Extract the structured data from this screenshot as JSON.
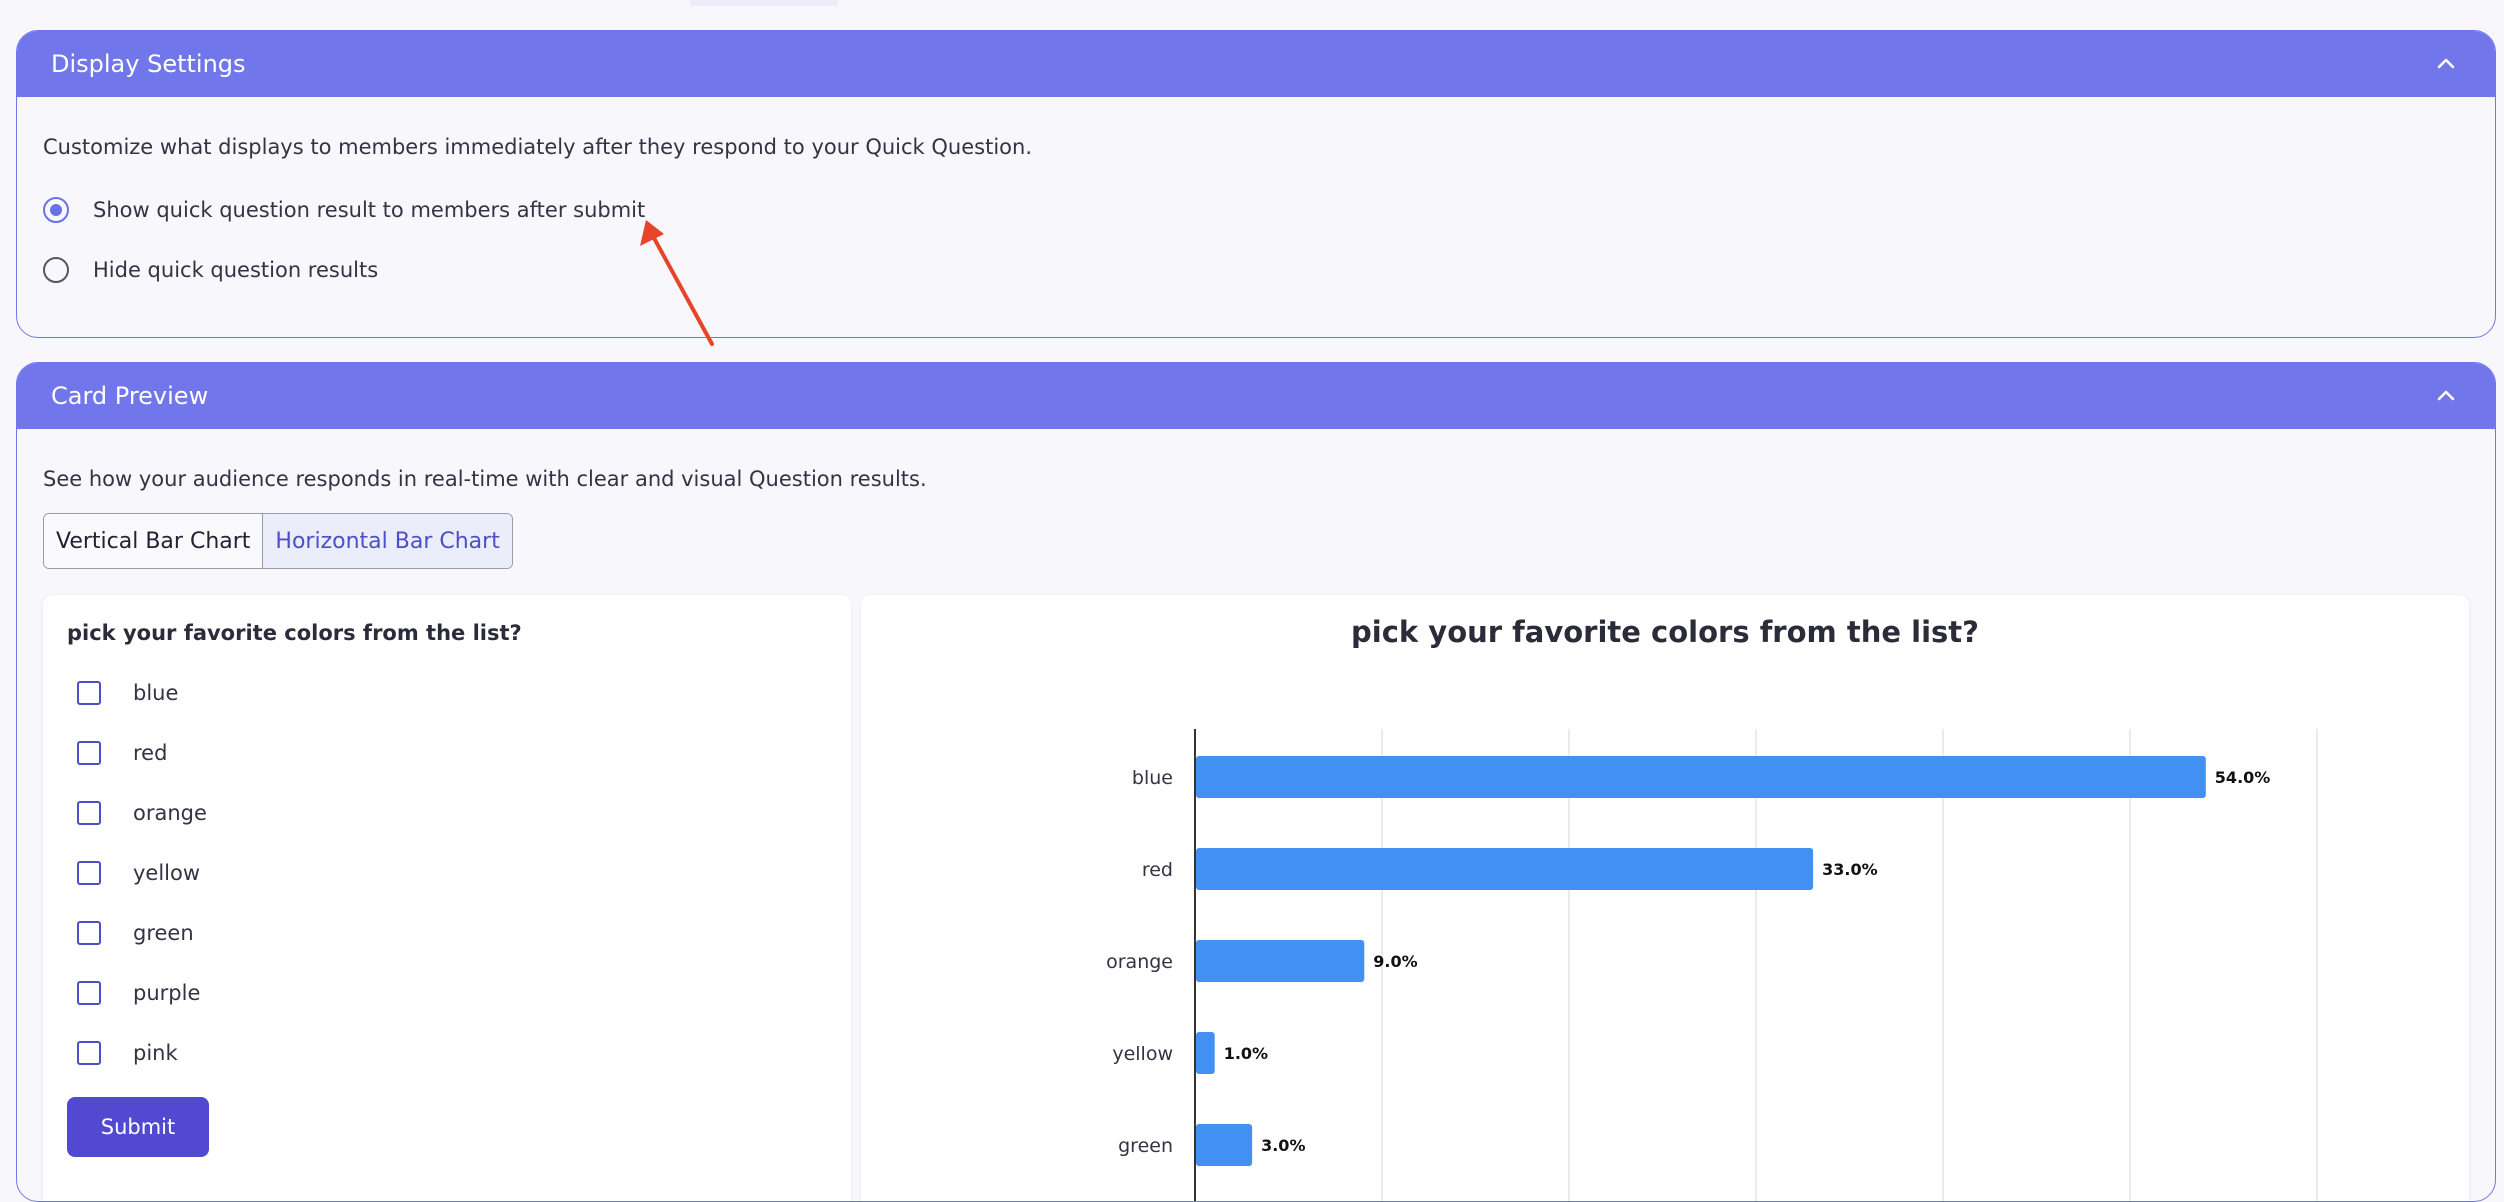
{
  "display_settings": {
    "title": "Display Settings",
    "description": "Customize what displays to members immediately after they respond to your Quick Question.",
    "options": [
      {
        "label": "Show quick question result to members after submit",
        "selected": true
      },
      {
        "label": "Hide quick question results",
        "selected": false
      }
    ]
  },
  "card_preview": {
    "title": "Card Preview",
    "description": "See how your audience responds in real-time with clear and visual Question results.",
    "chart_tabs": [
      {
        "label": "Vertical Bar Chart",
        "active": false
      },
      {
        "label": "Horizontal Bar Chart",
        "active": true
      }
    ],
    "question": {
      "title": "pick your favorite colors from the list?",
      "options": [
        "blue",
        "red",
        "orange",
        "yellow",
        "green",
        "purple",
        "pink"
      ],
      "submit_label": "Submit"
    }
  },
  "chart_data": {
    "type": "bar",
    "orientation": "horizontal",
    "title": "pick your favorite colors from the list?",
    "categories": [
      "blue",
      "red",
      "orange",
      "yellow",
      "green"
    ],
    "values": [
      54.0,
      33.0,
      9.0,
      1.0,
      3.0
    ],
    "value_labels": [
      "54.0%",
      "33.0%",
      "9.0%",
      "1.0%",
      "3.0%"
    ],
    "xlim": [
      0,
      60
    ],
    "grid": true,
    "bar_color": "#4390f5"
  },
  "colors": {
    "accent": "#7176ea",
    "primary_button": "#5149cf",
    "annotation_arrow": "#e8442a"
  },
  "icons": {
    "collapse": "chevron-up-icon",
    "annotation": "red-arrow-icon"
  }
}
